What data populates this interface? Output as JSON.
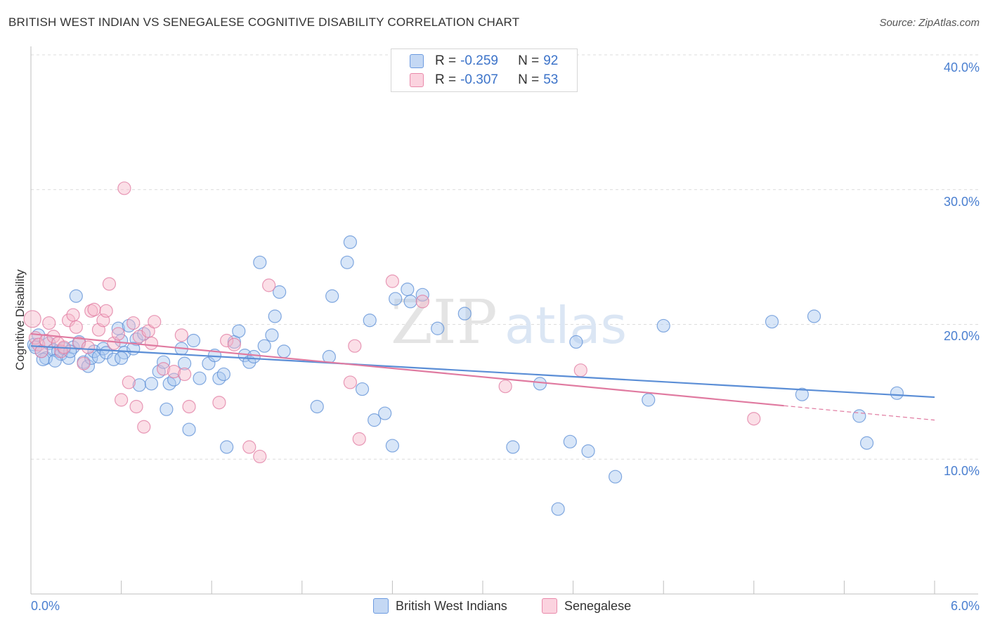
{
  "title": "BRITISH WEST INDIAN VS SENEGALESE COGNITIVE DISABILITY CORRELATION CHART",
  "source": "Source: ZipAtlas.com",
  "watermark": "ZIPatlas",
  "legend_top": {
    "rows": [
      {
        "r_label": "R =",
        "r_value": "-0.259",
        "n_label": "N =",
        "n_value": "92",
        "color": "#a9c7f0"
      },
      {
        "r_label": "R =",
        "r_value": "-0.307",
        "n_label": "N =",
        "n_value": "53",
        "color": "#f6b8ca"
      }
    ]
  },
  "legend_bottom": {
    "items": [
      {
        "label": "British West Indians",
        "color": "#a9c7f0"
      },
      {
        "label": "Senegalese",
        "color": "#f6b8ca"
      }
    ]
  },
  "chart_data": {
    "type": "scatter",
    "title": "BRITISH WEST INDIAN VS SENEGALESE COGNITIVE DISABILITY CORRELATION CHART",
    "xlabel": "",
    "ylabel": "Cognitive Disability",
    "xlim": [
      0.0,
      6.0
    ],
    "ylim": [
      0.0,
      40.0
    ],
    "x_tick_labels": [
      "0.0%",
      "6.0%"
    ],
    "y_tick_labels": [
      "10.0%",
      "20.0%",
      "30.0%",
      "40.0%"
    ],
    "y_ticks": [
      10,
      20,
      30,
      40
    ],
    "grid": true,
    "legend_position": "top-center",
    "series": [
      {
        "name": "British West Indians",
        "color": "#5b8ed6",
        "fill": "#a9c7f0",
        "trend": {
          "x": [
            0.0,
            6.0
          ],
          "y": [
            18.4,
            14.6
          ],
          "dashed_from": null
        },
        "points": [
          [
            0.02,
            18.5
          ],
          [
            0.05,
            19.2
          ],
          [
            0.07,
            18.0
          ],
          [
            0.1,
            17.5
          ],
          [
            0.12,
            18.6
          ],
          [
            0.15,
            18.1
          ],
          [
            0.18,
            18.0
          ],
          [
            0.2,
            17.8
          ],
          [
            0.22,
            18.2
          ],
          [
            0.25,
            17.5
          ],
          [
            0.28,
            18.3
          ],
          [
            0.3,
            22.1
          ],
          [
            0.32,
            18.7
          ],
          [
            0.35,
            17.2
          ],
          [
            0.38,
            16.9
          ],
          [
            0.4,
            17.5
          ],
          [
            0.42,
            18.0
          ],
          [
            0.45,
            17.6
          ],
          [
            0.48,
            18.2
          ],
          [
            0.5,
            17.9
          ],
          [
            0.55,
            17.4
          ],
          [
            0.58,
            19.7
          ],
          [
            0.6,
            18.8
          ],
          [
            0.62,
            17.9
          ],
          [
            0.65,
            19.9
          ],
          [
            0.7,
            18.9
          ],
          [
            0.72,
            15.5
          ],
          [
            0.75,
            19.3
          ],
          [
            0.8,
            15.6
          ],
          [
            0.85,
            16.5
          ],
          [
            0.88,
            17.2
          ],
          [
            0.9,
            13.7
          ],
          [
            0.92,
            15.6
          ],
          [
            0.95,
            15.9
          ],
          [
            1.0,
            18.2
          ],
          [
            1.02,
            17.1
          ],
          [
            1.05,
            12.2
          ],
          [
            1.08,
            18.8
          ],
          [
            1.12,
            16.0
          ],
          [
            1.18,
            17.1
          ],
          [
            1.22,
            17.7
          ],
          [
            1.25,
            16.0
          ],
          [
            1.28,
            16.3
          ],
          [
            1.3,
            10.9
          ],
          [
            1.35,
            18.7
          ],
          [
            1.38,
            19.5
          ],
          [
            1.42,
            17.7
          ],
          [
            1.45,
            17.2
          ],
          [
            1.48,
            17.6
          ],
          [
            1.52,
            24.6
          ],
          [
            1.55,
            18.4
          ],
          [
            1.6,
            19.2
          ],
          [
            1.62,
            20.6
          ],
          [
            1.65,
            22.4
          ],
          [
            1.68,
            18.0
          ],
          [
            1.9,
            13.9
          ],
          [
            1.98,
            17.6
          ],
          [
            2.0,
            22.1
          ],
          [
            2.12,
            26.1
          ],
          [
            2.1,
            24.6
          ],
          [
            2.2,
            15.2
          ],
          [
            2.25,
            20.3
          ],
          [
            2.28,
            12.9
          ],
          [
            2.35,
            13.4
          ],
          [
            2.4,
            11.0
          ],
          [
            2.42,
            21.9
          ],
          [
            2.5,
            22.6
          ],
          [
            2.52,
            21.7
          ],
          [
            2.6,
            22.2
          ],
          [
            2.7,
            19.7
          ],
          [
            2.88,
            20.8
          ],
          [
            3.2,
            10.9
          ],
          [
            3.38,
            15.6
          ],
          [
            3.5,
            6.3
          ],
          [
            3.58,
            11.3
          ],
          [
            3.62,
            18.7
          ],
          [
            3.7,
            10.6
          ],
          [
            3.88,
            8.7
          ],
          [
            4.1,
            14.4
          ],
          [
            4.2,
            19.9
          ],
          [
            4.92,
            20.2
          ],
          [
            5.12,
            14.8
          ],
          [
            5.2,
            20.6
          ],
          [
            5.5,
            13.2
          ],
          [
            5.55,
            11.2
          ],
          [
            5.75,
            14.9
          ],
          [
            0.03,
            18.3
          ],
          [
            0.08,
            17.4
          ],
          [
            0.6,
            17.5
          ],
          [
            0.68,
            18.2
          ],
          [
            0.16,
            17.3
          ],
          [
            0.26,
            18.0
          ]
        ]
      },
      {
        "name": "Senegalese",
        "color": "#e07aa0",
        "fill": "#f6b8ca",
        "trend": {
          "x": [
            0.0,
            6.0
          ],
          "y": [
            19.3,
            12.9
          ],
          "dashed_from": 5.0
        },
        "points": [
          [
            0.01,
            20.4
          ],
          [
            0.03,
            19.0
          ],
          [
            0.05,
            18.5
          ],
          [
            0.07,
            18.0
          ],
          [
            0.1,
            18.8
          ],
          [
            0.12,
            20.1
          ],
          [
            0.15,
            19.1
          ],
          [
            0.18,
            18.6
          ],
          [
            0.2,
            18.0
          ],
          [
            0.22,
            18.3
          ],
          [
            0.25,
            20.3
          ],
          [
            0.28,
            20.7
          ],
          [
            0.3,
            19.8
          ],
          [
            0.32,
            18.6
          ],
          [
            0.35,
            17.1
          ],
          [
            0.38,
            18.3
          ],
          [
            0.4,
            21.0
          ],
          [
            0.42,
            21.1
          ],
          [
            0.45,
            19.6
          ],
          [
            0.48,
            20.3
          ],
          [
            0.5,
            21.0
          ],
          [
            0.52,
            23.0
          ],
          [
            0.55,
            18.6
          ],
          [
            0.58,
            19.3
          ],
          [
            0.6,
            14.4
          ],
          [
            0.62,
            30.1
          ],
          [
            0.65,
            15.7
          ],
          [
            0.68,
            20.1
          ],
          [
            0.7,
            13.9
          ],
          [
            0.72,
            19.1
          ],
          [
            0.75,
            12.4
          ],
          [
            0.78,
            19.5
          ],
          [
            0.8,
            18.6
          ],
          [
            0.82,
            20.2
          ],
          [
            0.88,
            16.7
          ],
          [
            0.95,
            16.5
          ],
          [
            1.0,
            19.2
          ],
          [
            1.02,
            16.3
          ],
          [
            1.05,
            13.9
          ],
          [
            1.25,
            14.2
          ],
          [
            1.3,
            18.8
          ],
          [
            1.35,
            18.5
          ],
          [
            1.45,
            10.9
          ],
          [
            1.52,
            10.2
          ],
          [
            1.58,
            22.9
          ],
          [
            2.12,
            15.7
          ],
          [
            2.15,
            18.4
          ],
          [
            2.18,
            11.5
          ],
          [
            2.4,
            23.2
          ],
          [
            2.6,
            21.7
          ],
          [
            3.15,
            15.4
          ],
          [
            3.65,
            16.6
          ],
          [
            4.8,
            13.0
          ]
        ]
      }
    ]
  },
  "ticks": {
    "y": [
      {
        "label": "40.0%",
        "value": 40
      },
      {
        "label": "30.0%",
        "value": 30
      },
      {
        "label": "20.0%",
        "value": 20
      },
      {
        "label": "10.0%",
        "value": 10
      }
    ],
    "x_left": "0.0%",
    "x_right": "6.0%"
  }
}
